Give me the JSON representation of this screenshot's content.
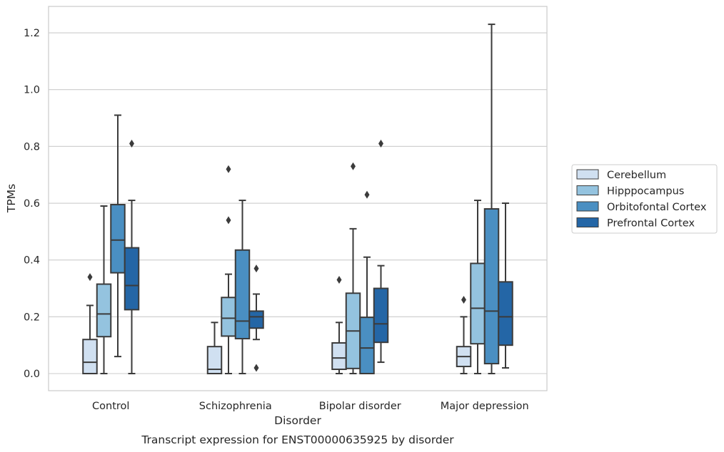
{
  "chart_data": {
    "type": "box",
    "categories": [
      "Control",
      "Schizophrenia",
      "Bipolar disorder",
      "Major depression"
    ],
    "xlabel": "Disorder",
    "ylabel": "TPMs",
    "caption": "Transcript expression for ENST00000635925 by disorder",
    "ylim": [
      -0.06,
      1.29
    ],
    "yticks": [
      "0.0",
      "0.2",
      "0.4",
      "0.6",
      "0.8",
      "1.0",
      "1.2"
    ],
    "ytick_values": [
      0.0,
      0.2,
      0.4,
      0.6,
      0.8,
      1.0,
      1.2
    ],
    "grid": "horizontal",
    "legend_position": "right",
    "series": [
      {
        "name": "Cerebellum",
        "color": "#d0e0f1",
        "boxes": [
          {
            "whisker_low": 0.0,
            "q1": 0.0,
            "median": 0.04,
            "q3": 0.12,
            "whisker_high": 0.24,
            "outliers": [
              0.34
            ]
          },
          {
            "whisker_low": 0.0,
            "q1": 0.0,
            "median": 0.015,
            "q3": 0.095,
            "whisker_high": 0.18,
            "outliers": []
          },
          {
            "whisker_low": 0.0,
            "q1": 0.015,
            "median": 0.055,
            "q3": 0.108,
            "whisker_high": 0.18,
            "outliers": [
              0.33
            ]
          },
          {
            "whisker_low": 0.0,
            "q1": 0.025,
            "median": 0.06,
            "q3": 0.095,
            "whisker_high": 0.2,
            "outliers": [
              0.26
            ]
          }
        ]
      },
      {
        "name": "Hipppocampus",
        "color": "#94c3df",
        "boxes": [
          {
            "whisker_low": 0.0,
            "q1": 0.13,
            "median": 0.21,
            "q3": 0.315,
            "whisker_high": 0.59,
            "outliers": []
          },
          {
            "whisker_low": 0.0,
            "q1": 0.132,
            "median": 0.195,
            "q3": 0.268,
            "whisker_high": 0.35,
            "outliers": [
              0.54,
              0.72
            ]
          },
          {
            "whisker_low": 0.0,
            "q1": 0.018,
            "median": 0.15,
            "q3": 0.283,
            "whisker_high": 0.51,
            "outliers": [
              0.73
            ]
          },
          {
            "whisker_low": 0.0,
            "q1": 0.105,
            "median": 0.23,
            "q3": 0.388,
            "whisker_high": 0.61,
            "outliers": []
          }
        ]
      },
      {
        "name": "Orbitofontal Cortex",
        "color": "#4a8fc2",
        "boxes": [
          {
            "whisker_low": 0.06,
            "q1": 0.355,
            "median": 0.47,
            "q3": 0.595,
            "whisker_high": 0.91,
            "outliers": []
          },
          {
            "whisker_low": 0.0,
            "q1": 0.123,
            "median": 0.185,
            "q3": 0.435,
            "whisker_high": 0.61,
            "outliers": []
          },
          {
            "whisker_low": 0.0,
            "q1": 0.0,
            "median": 0.09,
            "q3": 0.198,
            "whisker_high": 0.41,
            "outliers": [
              0.63
            ]
          },
          {
            "whisker_low": 0.0,
            "q1": 0.035,
            "median": 0.22,
            "q3": 0.58,
            "whisker_high": 1.23,
            "outliers": []
          }
        ]
      },
      {
        "name": "Prefrontal Cortex",
        "color": "#2466a6",
        "boxes": [
          {
            "whisker_low": 0.0,
            "q1": 0.225,
            "median": 0.31,
            "q3": 0.443,
            "whisker_high": 0.61,
            "outliers": [
              0.81
            ]
          },
          {
            "whisker_low": 0.12,
            "q1": 0.16,
            "median": 0.2,
            "q3": 0.22,
            "whisker_high": 0.28,
            "outliers": [
              0.02,
              0.37
            ]
          },
          {
            "whisker_low": 0.04,
            "q1": 0.11,
            "median": 0.175,
            "q3": 0.3,
            "whisker_high": 0.38,
            "outliers": [
              0.81
            ]
          },
          {
            "whisker_low": 0.02,
            "q1": 0.1,
            "median": 0.2,
            "q3": 0.323,
            "whisker_high": 0.6,
            "outliers": []
          }
        ]
      }
    ]
  }
}
